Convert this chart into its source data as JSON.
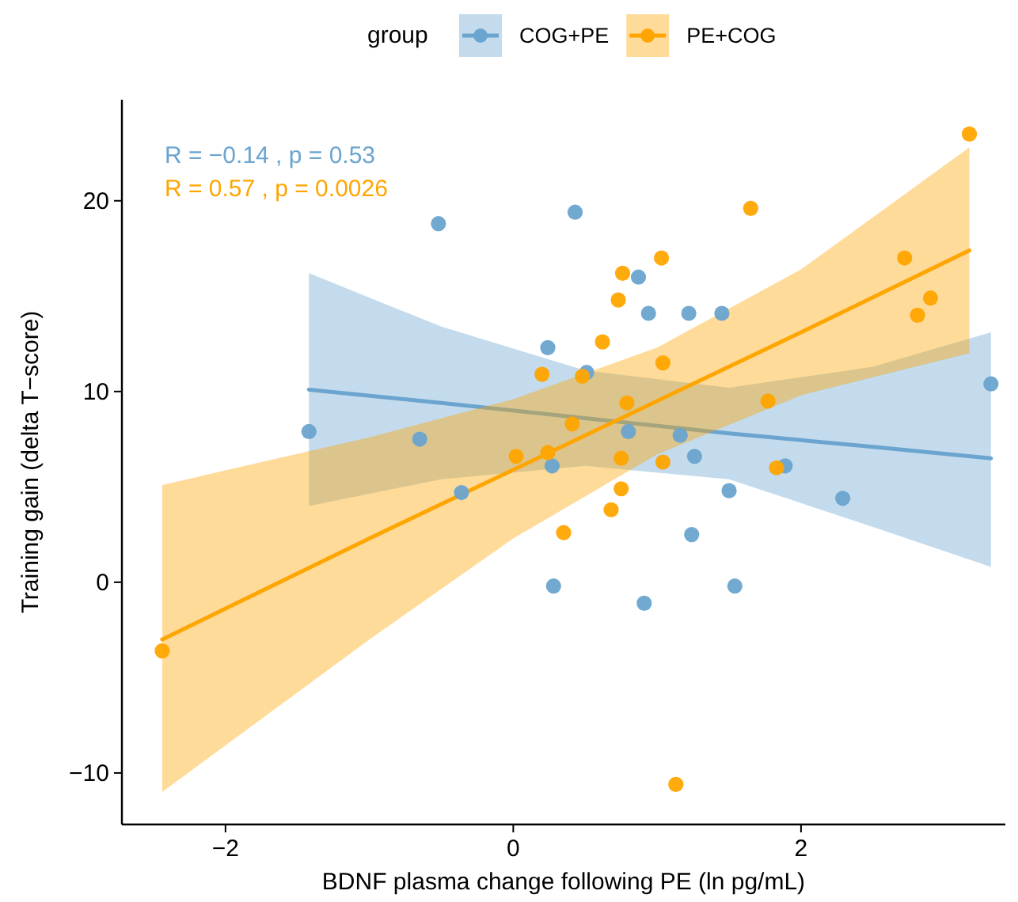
{
  "chart_data": {
    "type": "scatter",
    "xlabel": "BDNF plasma change following PE (ln pg/mL)",
    "ylabel": "Training gain (delta T−score)",
    "legend_title": "group",
    "legend": "top",
    "grid": false,
    "marker": "circle",
    "xlim": [
      -2.72,
      3.42
    ],
    "xticks": [
      {
        "value": -2,
        "label": "−2"
      },
      0,
      2
    ],
    "ylim": [
      -12.7,
      25.3
    ],
    "yticks": [
      {
        "value": -10,
        "label": "−10"
      },
      0,
      10,
      20
    ],
    "annotations": [
      "R = −0.14 , p = 0.53",
      "R = 0.57 , p = 0.0026"
    ],
    "series": [
      {
        "type": "line",
        "marker": "none",
        "color": "#6aa4cf",
        "x": [
          -1.42,
          -0.5,
          0.5,
          1.5,
          2.5,
          3.32
        ],
        "values": [
          10.1,
          9.4,
          8.6,
          7.8,
          7.1,
          6.5
        ],
        "lower": [
          4.0,
          5.4,
          6.1,
          5.4,
          2.9,
          0.8
        ],
        "upper": [
          16.2,
          13.4,
          11.1,
          10.2,
          11.3,
          13.1
        ]
      },
      {
        "type": "line",
        "marker": "none",
        "color": "#ffa500",
        "x": [
          -2.44,
          -1,
          0,
          1,
          2,
          3.17
        ],
        "values": [
          -3.0,
          2.3,
          5.9,
          9.5,
          13.1,
          17.4
        ],
        "lower": [
          -11.0,
          -3.0,
          2.3,
          6.7,
          9.8,
          12.0
        ],
        "upper": [
          5.1,
          7.6,
          9.6,
          12.3,
          16.4,
          22.8
        ]
      },
      {
        "name": "COG+PE",
        "color": "#6aa4cf",
        "x": [
          -0.52,
          0.43,
          -1.42,
          0.24,
          0.87,
          0.94,
          1.22,
          1.45,
          0.51,
          3.32,
          1.16,
          0.8,
          1.26,
          1.89,
          1.5,
          2.29,
          1.24,
          0.27,
          -0.65,
          -0.36,
          0.28,
          0.91,
          1.54
        ],
        "values": [
          18.8,
          19.4,
          7.9,
          12.3,
          16.0,
          14.1,
          14.1,
          14.1,
          11.0,
          10.4,
          7.7,
          7.9,
          6.6,
          6.1,
          4.8,
          4.4,
          2.5,
          6.1,
          7.5,
          4.7,
          -0.2,
          -1.1,
          -0.2
        ]
      },
      {
        "name": "PE+COG",
        "color": "#ffa500",
        "x": [
          -2.44,
          1.13,
          0.75,
          0.68,
          0.35,
          0.2,
          0.02,
          0.24,
          0.41,
          3.17,
          1.65,
          1.03,
          0.76,
          0.73,
          0.62,
          1.04,
          2.72,
          2.9,
          2.81,
          1.77,
          0.79,
          0.75,
          1.04,
          1.83,
          0.48
        ],
        "values": [
          -3.6,
          -10.6,
          4.9,
          3.8,
          2.6,
          10.9,
          6.6,
          6.8,
          8.3,
          23.5,
          19.6,
          17.0,
          16.2,
          14.8,
          12.6,
          11.5,
          17.0,
          14.9,
          14.0,
          9.5,
          9.4,
          6.5,
          6.3,
          6.0,
          10.8
        ]
      }
    ]
  }
}
